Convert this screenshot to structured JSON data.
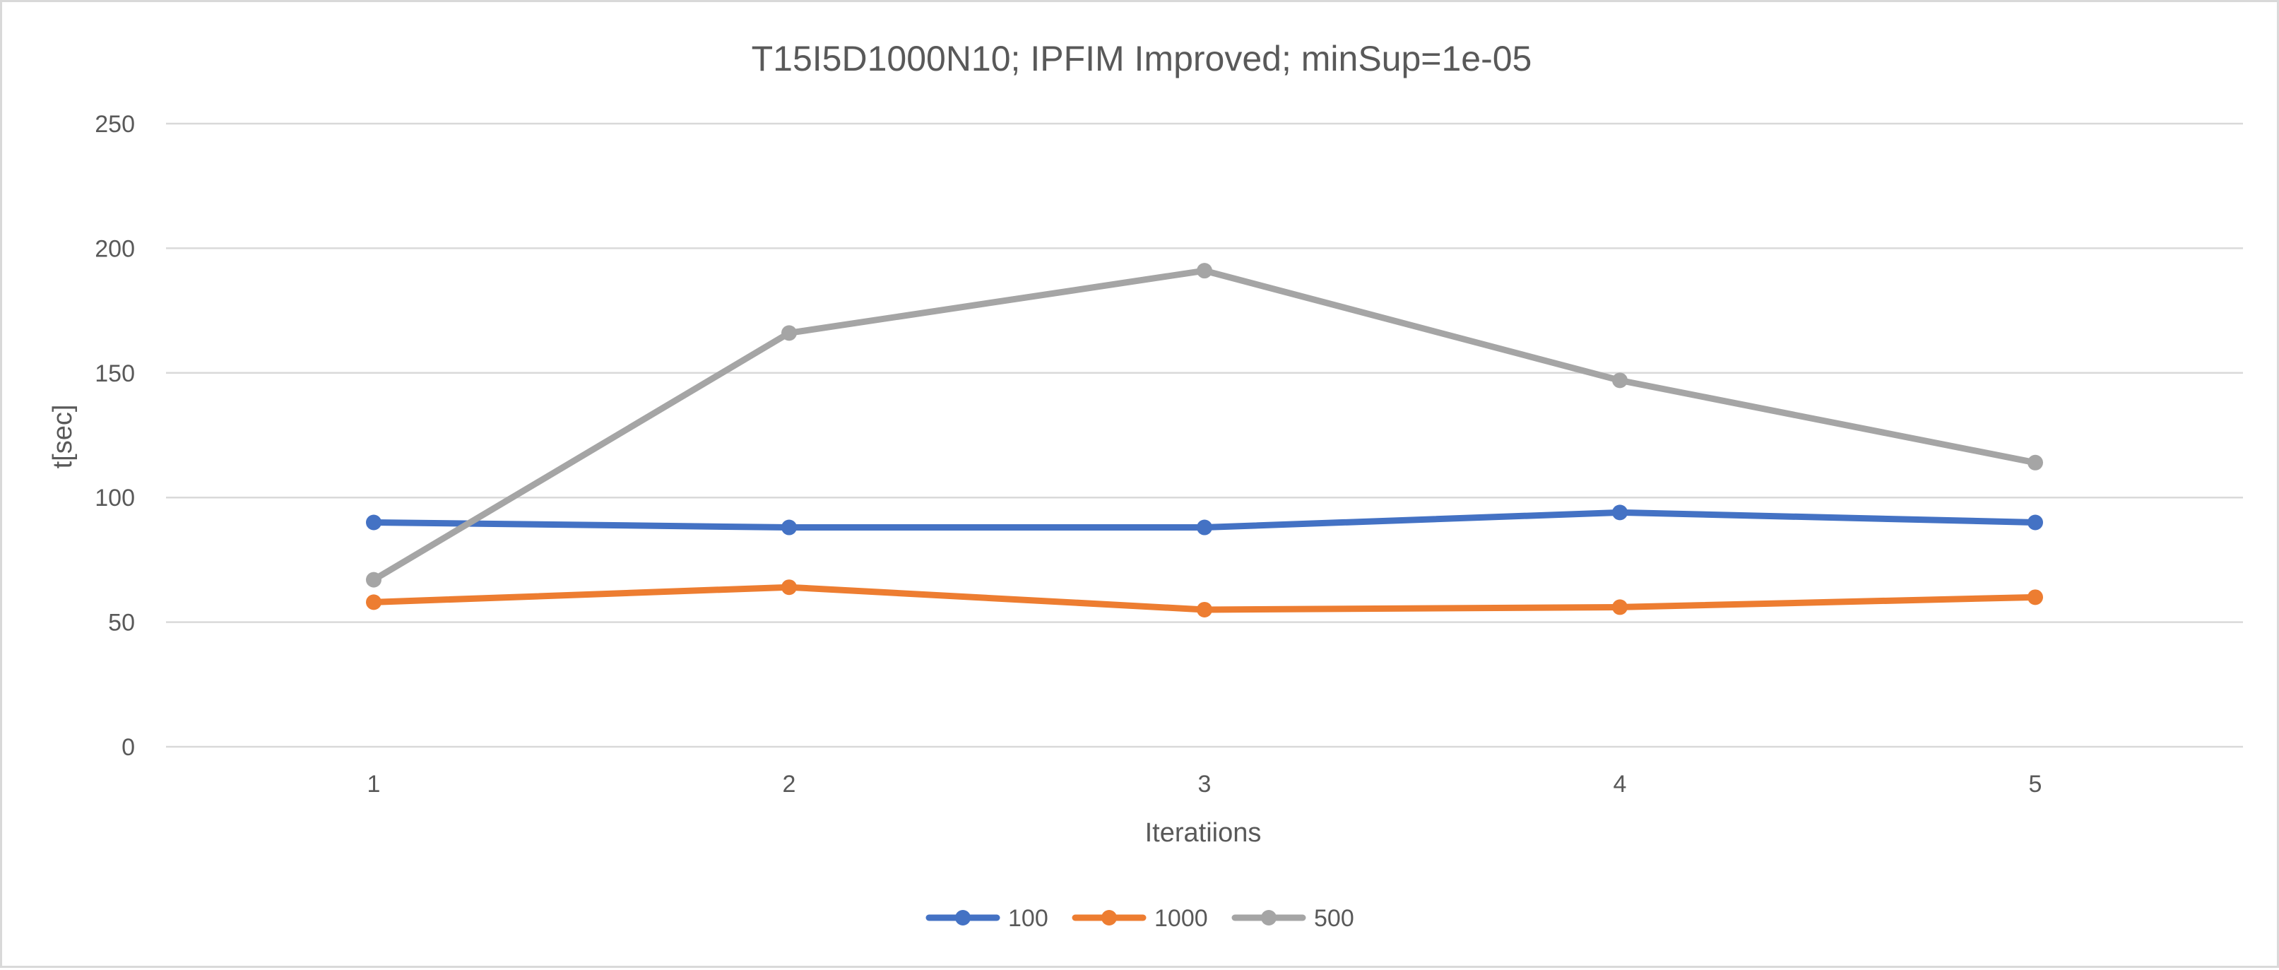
{
  "chart_data": {
    "type": "line",
    "title": "T15I5D1000N10; IPFIM Improved; minSup=1e-05",
    "xlabel": "Iteratiions",
    "ylabel": "t[sec]",
    "categories": [
      "1",
      "2",
      "3",
      "4",
      "5"
    ],
    "ylim": [
      0,
      250
    ],
    "yticks": [
      "0",
      "50",
      "100",
      "150",
      "200",
      "250"
    ],
    "grid": true,
    "legend_position": "bottom",
    "series": [
      {
        "name": "100",
        "color": "#4472C4",
        "values": [
          90,
          88,
          88,
          94,
          90
        ]
      },
      {
        "name": "1000",
        "color": "#ED7D31",
        "values": [
          58,
          64,
          55,
          56,
          60
        ]
      },
      {
        "name": "500",
        "color": "#A5A5A5",
        "values": [
          67,
          166,
          191,
          147,
          114
        ]
      }
    ]
  }
}
